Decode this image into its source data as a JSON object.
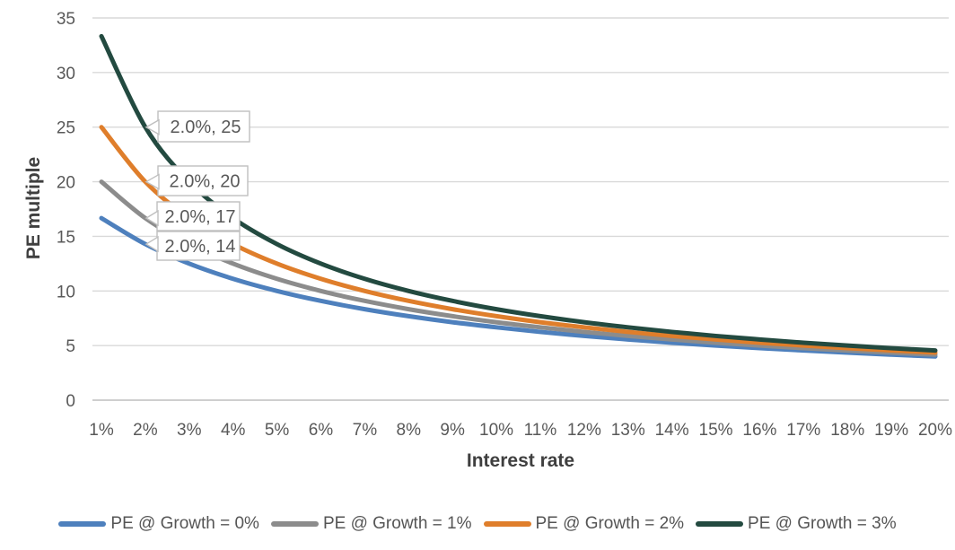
{
  "chart_data": {
    "type": "line",
    "title": "",
    "xlabel": "Interest rate",
    "ylabel": "PE multiple",
    "x_categories": [
      "1%",
      "2%",
      "3%",
      "4%",
      "5%",
      "6%",
      "7%",
      "8%",
      "9%",
      "10%",
      "11%",
      "12%",
      "13%",
      "14%",
      "15%",
      "16%",
      "17%",
      "18%",
      "19%",
      "20%"
    ],
    "y_ticks": [
      0,
      5,
      10,
      15,
      20,
      25,
      30,
      35
    ],
    "ylim": [
      0,
      35
    ],
    "grid": "horizontal-only",
    "legend_position": "bottom",
    "series": [
      {
        "name": "PE @ Growth = 0%",
        "color": "#4e80bd",
        "values": [
          16.67,
          14.29,
          12.5,
          11.11,
          10,
          9.09,
          8.33,
          7.69,
          7.14,
          6.67,
          6.25,
          5.88,
          5.56,
          5.26,
          5,
          4.76,
          4.55,
          4.35,
          4.17,
          4
        ]
      },
      {
        "name": "PE @ Growth = 1%",
        "color": "#8c8c8c",
        "values": [
          20,
          16.67,
          14.29,
          12.5,
          11.11,
          10,
          9.09,
          8.33,
          7.69,
          7.14,
          6.67,
          6.25,
          5.88,
          5.56,
          5.26,
          5,
          4.76,
          4.55,
          4.35,
          4.17
        ]
      },
      {
        "name": "PE @ Growth = 2%",
        "color": "#df7e2b",
        "values": [
          25,
          20,
          16.67,
          14.29,
          12.5,
          11.11,
          10,
          9.09,
          8.33,
          7.69,
          7.14,
          6.67,
          6.25,
          5.88,
          5.56,
          5.26,
          5,
          4.76,
          4.55,
          4.35
        ]
      },
      {
        "name": "PE @ Growth = 3%",
        "color": "#234a40",
        "values": [
          33.33,
          25,
          20,
          16.67,
          14.29,
          12.5,
          11.11,
          10,
          9.09,
          8.33,
          7.69,
          7.14,
          6.67,
          6.25,
          5.88,
          5.56,
          5.26,
          5,
          4.76,
          4.55
        ]
      }
    ],
    "data_callouts": [
      {
        "label": "2.0%, 25",
        "series_index": 3,
        "point_index": 1
      },
      {
        "label": "2.0%, 20",
        "series_index": 2,
        "point_index": 1
      },
      {
        "label": "2.0%, 17",
        "series_index": 1,
        "point_index": 1
      },
      {
        "label": "2.0%, 14",
        "series_index": 0,
        "point_index": 1
      }
    ],
    "colors": {
      "background": "#ffffff",
      "gridline": "#d9d9d9",
      "axis_line": "#bfbfbf",
      "tick_label": "#595959",
      "axis_title": "#3f3f3f",
      "legend_text": "#555555",
      "callout_border": "#bfbfbf",
      "callout_fill": "#ffffff",
      "callout_text": "#595959"
    }
  }
}
